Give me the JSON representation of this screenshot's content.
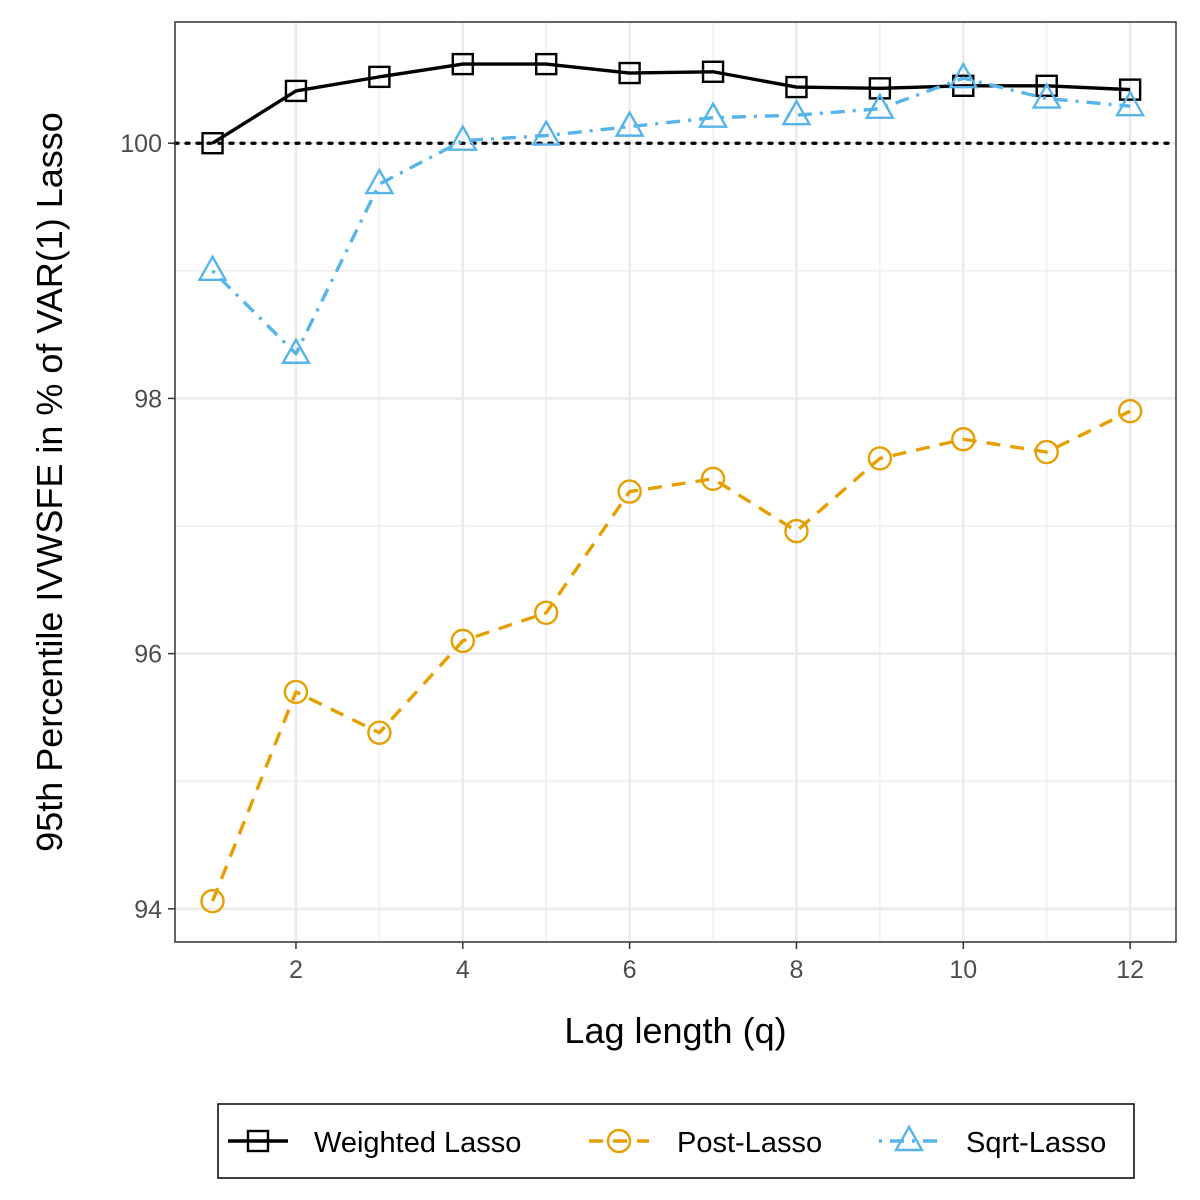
{
  "chart_data": {
    "type": "line",
    "xlabel": "Lag length (q)",
    "ylabel": "95th Percentile IVWSFE in % of VAR(1) Lasso",
    "x": [
      1,
      2,
      3,
      4,
      5,
      6,
      7,
      8,
      9,
      10,
      11,
      12
    ],
    "xlim": [
      0.55,
      12.55
    ],
    "ylim": [
      93.74,
      100.95
    ],
    "xticks": [
      2,
      4,
      6,
      8,
      10,
      12
    ],
    "yticks": [
      94,
      96,
      98,
      100
    ],
    "grid": true,
    "reference_line": 100,
    "legend_position": "bottom",
    "series": [
      {
        "name": "Weighted Lasso",
        "color": "#000000",
        "marker": "square",
        "linestyle": "solid",
        "values": [
          100.0,
          100.41,
          100.52,
          100.62,
          100.62,
          100.55,
          100.56,
          100.44,
          100.43,
          100.45,
          100.45,
          100.42
        ]
      },
      {
        "name": "Post-Lasso",
        "color": "#E69F00",
        "marker": "circle",
        "linestyle": "dashed",
        "values": [
          94.06,
          95.7,
          95.38,
          96.1,
          96.32,
          97.27,
          97.37,
          96.96,
          97.53,
          97.68,
          97.58,
          97.9
        ]
      },
      {
        "name": "Sqrt-Lasso",
        "color": "#56B4E9",
        "marker": "triangle",
        "linestyle": "dotdash",
        "values": [
          99.0,
          98.35,
          99.68,
          100.02,
          100.06,
          100.13,
          100.2,
          100.22,
          100.27,
          100.51,
          100.35,
          100.29
        ]
      }
    ]
  }
}
